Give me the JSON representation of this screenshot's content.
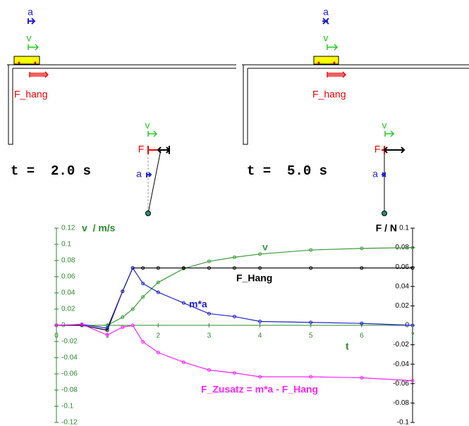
{
  "scenes": [
    {
      "accel_label": "a",
      "velocity_label": "v",
      "force_label": "F_hang",
      "time_label": "t =  2.0 s",
      "pendulum_velocity_label": "v",
      "pendulum_force_label": "F",
      "pendulum_accel_label": "a"
    },
    {
      "accel_label": "a",
      "velocity_label": "v",
      "force_label": "F_hang",
      "time_label": "t =  5.0 s",
      "pendulum_velocity_label": "v",
      "pendulum_force_label": "F",
      "pendulum_accel_label": "a"
    }
  ],
  "chart_data": {
    "type": "line",
    "x_label": "t",
    "y_label": "v  / m/s",
    "y2_label": "F / N",
    "x": [
      0,
      0.5,
      1,
      1.3,
      1.5,
      1.7,
      2,
      2.5,
      3,
      3.5,
      4,
      5,
      6,
      7
    ],
    "series": [
      {
        "name": "v",
        "color": "#3a9a3a",
        "values": [
          0,
          0,
          0,
          0.01,
          0.02,
          0.035,
          0.053,
          0.07,
          0.079,
          0.084,
          0.088,
          0.093,
          0.095,
          0.096
        ]
      },
      {
        "name": "F_Hang",
        "color": "#000000",
        "axis": "y2",
        "values": [
          0,
          0,
          -0.005,
          0.035,
          0.059,
          0.059,
          0.059,
          0.059,
          0.059,
          0.059,
          0.059,
          0.059,
          0.059,
          0.059
        ]
      },
      {
        "name": "m*a",
        "color": "#2222cc",
        "axis": "y2",
        "values": [
          0,
          0.001,
          -0.003,
          0.035,
          0.059,
          0.043,
          0.034,
          0.023,
          0.012,
          0.009,
          0.004,
          0.003,
          0.002,
          0
        ]
      },
      {
        "name": "F_Zusatz = m*a - F_Hang",
        "color": "#ff22ff",
        "axis": "y2",
        "values": [
          0,
          0.001,
          -0.01,
          -0.002,
          0,
          -0.017,
          -0.028,
          -0.038,
          -0.046,
          -0.049,
          -0.053,
          -0.053,
          -0.054,
          -0.057
        ]
      }
    ],
    "xlim": [
      0,
      7
    ],
    "xticks": [
      0,
      1,
      2,
      3,
      4,
      5,
      6,
      7
    ],
    "ylim": [
      -0.12,
      0.12
    ],
    "yticks": [
      0.12,
      0.1,
      0.08,
      0.06,
      0.04,
      0.02,
      0,
      -0.02,
      -0.04,
      -0.06,
      -0.08,
      -0.1,
      -0.12
    ],
    "y2lim": [
      -0.1,
      0.1
    ],
    "y2ticks": [
      0.1,
      0.08,
      0.06,
      0.04,
      0.02,
      0,
      -0.02,
      -0.04,
      -0.06,
      -0.08,
      -0.1
    ],
    "axis_color": "#2a8a2a",
    "y2_axis_color": "#000000"
  }
}
